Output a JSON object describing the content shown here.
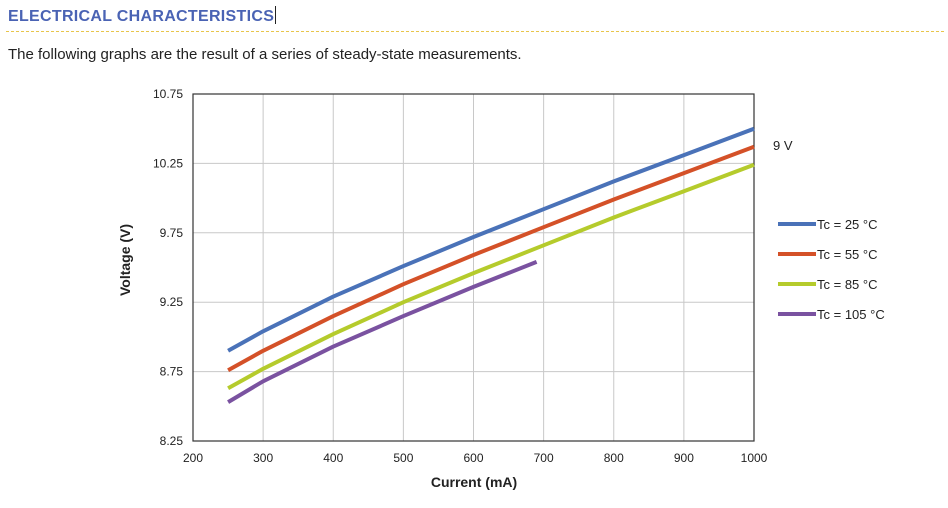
{
  "header": {
    "title": "ELECTRICAL CHARACTERISTICS",
    "intro": "The following graphs are the result of a series of steady-state measurements."
  },
  "chart_data": {
    "type": "line",
    "xlabel": "Current (mA)",
    "ylabel": "Voltage (V)",
    "xlim": [
      200,
      1000
    ],
    "ylim": [
      8.25,
      10.75
    ],
    "xticks": [
      "200",
      "300",
      "400",
      "500",
      "600",
      "700",
      "800",
      "900",
      "1000"
    ],
    "yticks": [
      "8.25",
      "8.75",
      "9.25",
      "9.75",
      "10.25",
      "10.75"
    ],
    "grid": true,
    "legend_position": "right",
    "annotation": "9 V",
    "series": [
      {
        "name": "Tc = 25 °C",
        "color": "#4a72b8",
        "x": [
          250,
          300,
          400,
          500,
          600,
          700,
          800,
          900,
          1000
        ],
        "y": [
          8.9,
          9.04,
          9.29,
          9.51,
          9.72,
          9.92,
          10.12,
          10.31,
          10.5
        ]
      },
      {
        "name": "Tc = 55 °C",
        "color": "#d45128",
        "x": [
          250,
          300,
          400,
          500,
          600,
          700,
          800,
          900,
          1000
        ],
        "y": [
          8.76,
          8.9,
          9.15,
          9.38,
          9.59,
          9.79,
          9.99,
          10.18,
          10.37
        ]
      },
      {
        "name": "Tc = 85 °C",
        "color": "#b5cb2c",
        "x": [
          250,
          300,
          400,
          500,
          600,
          700,
          800,
          900,
          1000
        ],
        "y": [
          8.63,
          8.77,
          9.02,
          9.25,
          9.46,
          9.66,
          9.86,
          10.05,
          10.24
        ]
      },
      {
        "name": "Tc = 105 °C",
        "color": "#7a52a0",
        "x": [
          250,
          300,
          400,
          500,
          600,
          690
        ],
        "y": [
          8.53,
          8.68,
          8.93,
          9.15,
          9.36,
          9.54
        ]
      }
    ]
  }
}
